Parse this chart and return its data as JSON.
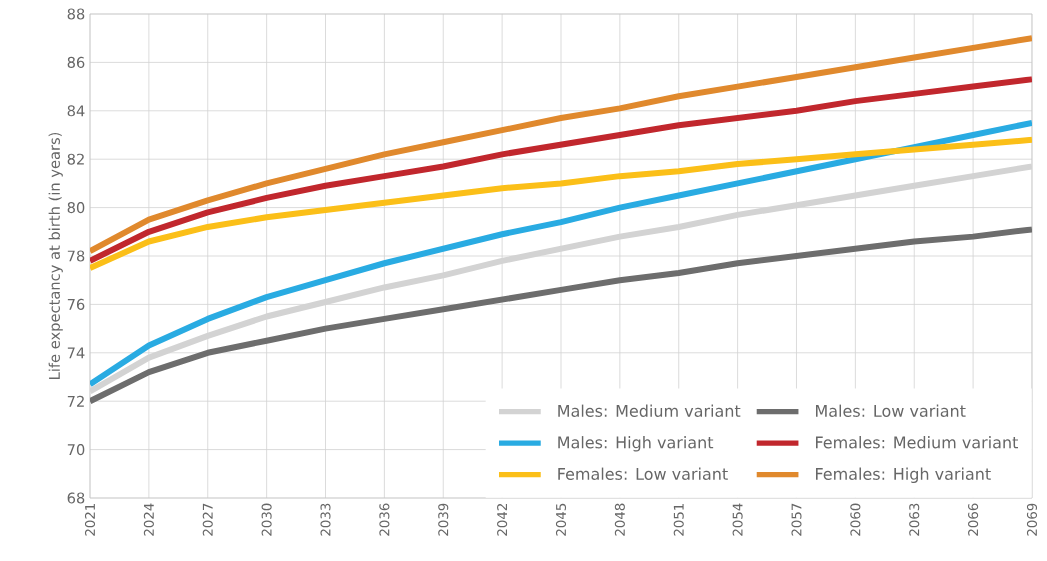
{
  "chart_data": {
    "type": "line",
    "ylabel": "Life expectancy at birth (in years)",
    "x": [
      2021,
      2024,
      2027,
      2030,
      2033,
      2036,
      2039,
      2042,
      2045,
      2048,
      2051,
      2054,
      2057,
      2060,
      2063,
      2066,
      2069
    ],
    "xlim": [
      2021,
      2069
    ],
    "xticks": [
      2021,
      2024,
      2027,
      2030,
      2033,
      2036,
      2039,
      2042,
      2045,
      2048,
      2051,
      2054,
      2057,
      2060,
      2063,
      2066,
      2069
    ],
    "ylim": [
      68,
      88
    ],
    "yticks": [
      68,
      70,
      72,
      74,
      76,
      78,
      80,
      82,
      84,
      86,
      88
    ],
    "grid": true,
    "legend": "bottom right",
    "marker": "none",
    "line_style": "solid",
    "series": [
      {
        "name": "Males: Medium variant",
        "color": "#d3d3d3",
        "values": [
          72.4,
          73.8,
          74.7,
          75.5,
          76.1,
          76.7,
          77.2,
          77.8,
          78.3,
          78.8,
          79.2,
          79.7,
          80.1,
          80.5,
          80.9,
          81.3,
          81.7
        ]
      },
      {
        "name": "Males: Low variant",
        "color": "#6d6d6d",
        "values": [
          72.0,
          73.2,
          74.0,
          74.5,
          75.0,
          75.4,
          75.8,
          76.2,
          76.6,
          77.0,
          77.3,
          77.7,
          78.0,
          78.3,
          78.6,
          78.8,
          79.1
        ]
      },
      {
        "name": "Males: High variant",
        "color": "#29abe2",
        "values": [
          72.7,
          74.3,
          75.4,
          76.3,
          77.0,
          77.7,
          78.3,
          78.9,
          79.4,
          80.0,
          80.5,
          81.0,
          81.5,
          82.0,
          82.5,
          83.0,
          83.5
        ]
      },
      {
        "name": "Females: Medium variant",
        "color": "#c1272d",
        "values": [
          77.8,
          79.0,
          79.8,
          80.4,
          80.9,
          81.3,
          81.7,
          82.2,
          82.6,
          83.0,
          83.4,
          83.7,
          84.0,
          84.4,
          84.7,
          85.0,
          85.3
        ]
      },
      {
        "name": "Females: Low variant",
        "color": "#fbbf18",
        "values": [
          77.5,
          78.6,
          79.2,
          79.6,
          79.9,
          80.2,
          80.5,
          80.8,
          81.0,
          81.3,
          81.5,
          81.8,
          82.0,
          82.2,
          82.4,
          82.6,
          82.8
        ]
      },
      {
        "name": "Females: High variant",
        "color": "#e0892d",
        "values": [
          78.2,
          79.5,
          80.3,
          81.0,
          81.6,
          82.2,
          82.7,
          83.2,
          83.7,
          84.1,
          84.6,
          85.0,
          85.4,
          85.8,
          86.2,
          86.6,
          87.0
        ]
      }
    ]
  }
}
